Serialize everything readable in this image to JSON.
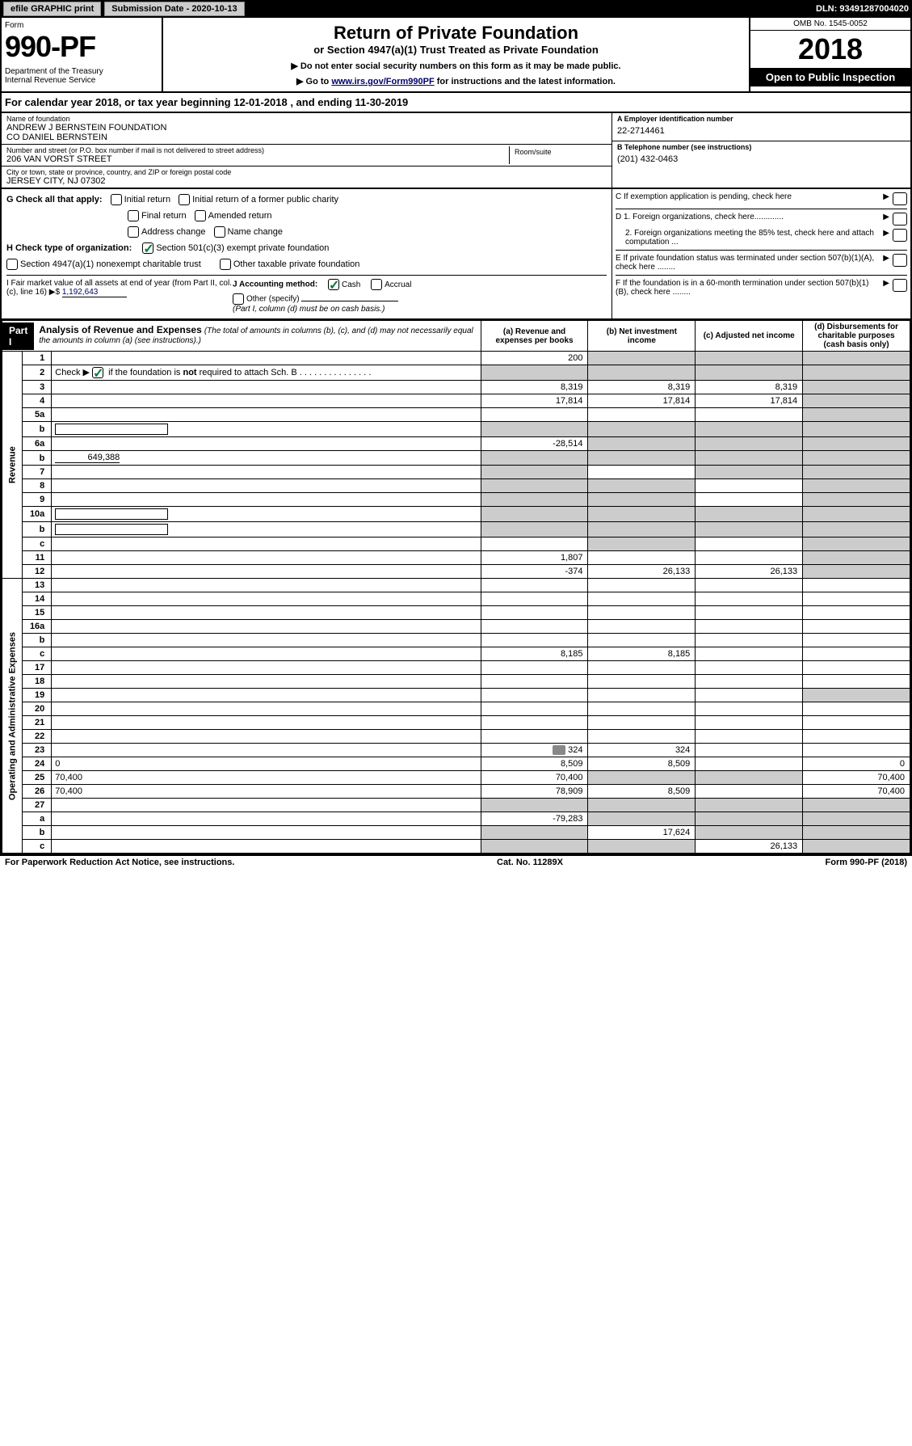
{
  "topbar": {
    "efile": "efile GRAPHIC print",
    "subdate_label": "Submission Date - 2020-10-13",
    "dln": "DLN: 93491287004020"
  },
  "header": {
    "form_word": "Form",
    "form_num": "990-PF",
    "dept": "Department of the Treasury\nInternal Revenue Service",
    "title": "Return of Private Foundation",
    "subtitle": "or Section 4947(a)(1) Trust Treated as Private Foundation",
    "instr1": "▶ Do not enter social security numbers on this form as it may be made public.",
    "instr2": "▶ Go to ",
    "instr_link": "www.irs.gov/Form990PF",
    "instr3": " for instructions and the latest information.",
    "omb": "OMB No. 1545-0052",
    "year": "2018",
    "open": "Open to Public Inspection"
  },
  "calyear": "For calendar year 2018, or tax year beginning 12-01-2018                          , and ending 11-30-2019",
  "info": {
    "name_lbl": "Name of foundation",
    "name_val": "ANDREW J BERNSTEIN FOUNDATION\nCO DANIEL BERNSTEIN",
    "addr_lbl": "Number and street (or P.O. box number if mail is not delivered to street address)",
    "addr_val": "206 VAN VORST STREET",
    "room_lbl": "Room/suite",
    "city_lbl": "City or town, state or province, country, and ZIP or foreign postal code",
    "city_val": "JERSEY CITY, NJ  07302",
    "ein_lbl": "A Employer identification number",
    "ein_val": "22-2714461",
    "phone_lbl": "B Telephone number (see instructions)",
    "phone_val": "(201) 432-0463",
    "c_lbl": "C If exemption application is pending, check here",
    "d1": "D 1. Foreign organizations, check here.............",
    "d2": "2. Foreign organizations meeting the 85% test, check here and attach computation ...",
    "e": "E  If private foundation status was terminated under section 507(b)(1)(A), check here ........",
    "f": "F  If the foundation is in a 60-month termination under section 507(b)(1)(B), check here ........"
  },
  "checks": {
    "g_label": "G Check all that apply:",
    "g_items": [
      "Initial return",
      "Initial return of a former public charity",
      "Final return",
      "Amended return",
      "Address change",
      "Name change"
    ],
    "h_label": "H Check type of organization:",
    "h_items": [
      "Section 501(c)(3) exempt private foundation",
      "Section 4947(a)(1) nonexempt charitable trust",
      "Other taxable private foundation"
    ],
    "h_checked": 0,
    "i_label": "I Fair market value of all assets at end of year (from Part II, col. (c), line 16) ▶$",
    "i_val": "1,192,643",
    "j_label": "J Accounting method:",
    "j_items": [
      "Cash",
      "Accrual",
      "Other (specify)"
    ],
    "j_checked": 0,
    "j_note": "(Part I, column (d) must be on cash basis.)"
  },
  "part1": {
    "label": "Part I",
    "title": "Analysis of Revenue and Expenses",
    "desc": "(The total of amounts in columns (b), (c), and (d) may not necessarily equal the amounts in column (a) (see instructions).)",
    "cols": [
      "(a)   Revenue and expenses per books",
      "(b)  Net investment income",
      "(c)  Adjusted net income",
      "(d)  Disbursements for charitable purposes (cash basis only)"
    ]
  },
  "revenue_label": "Revenue",
  "expenses_label": "Operating and Administrative Expenses",
  "rows": [
    {
      "n": "1",
      "d": "",
      "a": "200",
      "b": "",
      "c": "",
      "shade": [
        false,
        true,
        true,
        true
      ]
    },
    {
      "n": "2",
      "d": "",
      "a": "",
      "b": "",
      "c": "",
      "shade": [
        true,
        true,
        true,
        true
      ],
      "check": true
    },
    {
      "n": "3",
      "d": "",
      "a": "8,319",
      "b": "8,319",
      "c": "8,319",
      "shade": [
        false,
        false,
        false,
        true
      ]
    },
    {
      "n": "4",
      "d": "",
      "a": "17,814",
      "b": "17,814",
      "c": "17,814",
      "shade": [
        false,
        false,
        false,
        true
      ]
    },
    {
      "n": "5a",
      "d": "",
      "a": "",
      "b": "",
      "c": "",
      "shade": [
        false,
        false,
        false,
        true
      ]
    },
    {
      "n": "b",
      "d": "",
      "a": "",
      "b": "",
      "c": "",
      "shade": [
        true,
        true,
        true,
        true
      ],
      "box": true
    },
    {
      "n": "6a",
      "d": "",
      "a": "-28,514",
      "b": "",
      "c": "",
      "shade": [
        false,
        true,
        true,
        true
      ]
    },
    {
      "n": "b",
      "d": "",
      "a": "",
      "b": "",
      "c": "",
      "shade": [
        true,
        true,
        true,
        true
      ],
      "inline": "649,388"
    },
    {
      "n": "7",
      "d": "",
      "a": "",
      "b": "",
      "c": "",
      "shade": [
        true,
        false,
        true,
        true
      ]
    },
    {
      "n": "8",
      "d": "",
      "a": "",
      "b": "",
      "c": "",
      "shade": [
        true,
        true,
        false,
        true
      ]
    },
    {
      "n": "9",
      "d": "",
      "a": "",
      "b": "",
      "c": "",
      "shade": [
        true,
        true,
        false,
        true
      ]
    },
    {
      "n": "10a",
      "d": "",
      "a": "",
      "b": "",
      "c": "",
      "shade": [
        true,
        true,
        true,
        true
      ],
      "box": true
    },
    {
      "n": "b",
      "d": "",
      "a": "",
      "b": "",
      "c": "",
      "shade": [
        true,
        true,
        true,
        true
      ],
      "box": true
    },
    {
      "n": "c",
      "d": "",
      "a": "",
      "b": "",
      "c": "",
      "shade": [
        false,
        true,
        false,
        true
      ]
    },
    {
      "n": "11",
      "d": "",
      "a": "1,807",
      "b": "",
      "c": "",
      "shade": [
        false,
        false,
        false,
        true
      ]
    },
    {
      "n": "12",
      "d": "",
      "a": "-374",
      "b": "26,133",
      "c": "26,133",
      "shade": [
        false,
        false,
        false,
        true
      ]
    },
    {
      "n": "13",
      "d": "",
      "a": "",
      "b": "",
      "c": "",
      "shade": [
        false,
        false,
        false,
        false
      ]
    },
    {
      "n": "14",
      "d": "",
      "a": "",
      "b": "",
      "c": "",
      "shade": [
        false,
        false,
        false,
        false
      ]
    },
    {
      "n": "15",
      "d": "",
      "a": "",
      "b": "",
      "c": "",
      "shade": [
        false,
        false,
        false,
        false
      ]
    },
    {
      "n": "16a",
      "d": "",
      "a": "",
      "b": "",
      "c": "",
      "shade": [
        false,
        false,
        false,
        false
      ]
    },
    {
      "n": "b",
      "d": "",
      "a": "",
      "b": "",
      "c": "",
      "shade": [
        false,
        false,
        false,
        false
      ]
    },
    {
      "n": "c",
      "d": "",
      "a": "8,185",
      "b": "8,185",
      "c": "",
      "shade": [
        false,
        false,
        false,
        false
      ]
    },
    {
      "n": "17",
      "d": "",
      "a": "",
      "b": "",
      "c": "",
      "shade": [
        false,
        false,
        false,
        false
      ]
    },
    {
      "n": "18",
      "d": "",
      "a": "",
      "b": "",
      "c": "",
      "shade": [
        false,
        false,
        false,
        false
      ]
    },
    {
      "n": "19",
      "d": "",
      "a": "",
      "b": "",
      "c": "",
      "shade": [
        false,
        false,
        false,
        true
      ]
    },
    {
      "n": "20",
      "d": "",
      "a": "",
      "b": "",
      "c": "",
      "shade": [
        false,
        false,
        false,
        false
      ]
    },
    {
      "n": "21",
      "d": "",
      "a": "",
      "b": "",
      "c": "",
      "shade": [
        false,
        false,
        false,
        false
      ]
    },
    {
      "n": "22",
      "d": "",
      "a": "",
      "b": "",
      "c": "",
      "shade": [
        false,
        false,
        false,
        false
      ]
    },
    {
      "n": "23",
      "d": "",
      "a": "324",
      "b": "324",
      "c": "",
      "shade": [
        false,
        false,
        false,
        false
      ],
      "icon": true
    },
    {
      "n": "24",
      "d": "0",
      "a": "8,509",
      "b": "8,509",
      "c": "",
      "shade": [
        false,
        false,
        false,
        false
      ]
    },
    {
      "n": "25",
      "d": "70,400",
      "a": "70,400",
      "b": "",
      "c": "",
      "shade": [
        false,
        true,
        true,
        false
      ]
    },
    {
      "n": "26",
      "d": "70,400",
      "a": "78,909",
      "b": "8,509",
      "c": "",
      "shade": [
        false,
        false,
        false,
        false
      ]
    },
    {
      "n": "27",
      "d": "",
      "a": "",
      "b": "",
      "c": "",
      "shade": [
        true,
        true,
        true,
        true
      ]
    },
    {
      "n": "a",
      "d": "",
      "a": "-79,283",
      "b": "",
      "c": "",
      "shade": [
        false,
        true,
        true,
        true
      ]
    },
    {
      "n": "b",
      "d": "",
      "a": "",
      "b": "17,624",
      "c": "",
      "shade": [
        true,
        false,
        true,
        true
      ]
    },
    {
      "n": "c",
      "d": "",
      "a": "",
      "b": "",
      "c": "26,133",
      "shade": [
        true,
        true,
        false,
        true
      ]
    }
  ],
  "footer": {
    "left": "For Paperwork Reduction Act Notice, see instructions.",
    "center": "Cat. No. 11289X",
    "right": "Form 990-PF (2018)"
  }
}
